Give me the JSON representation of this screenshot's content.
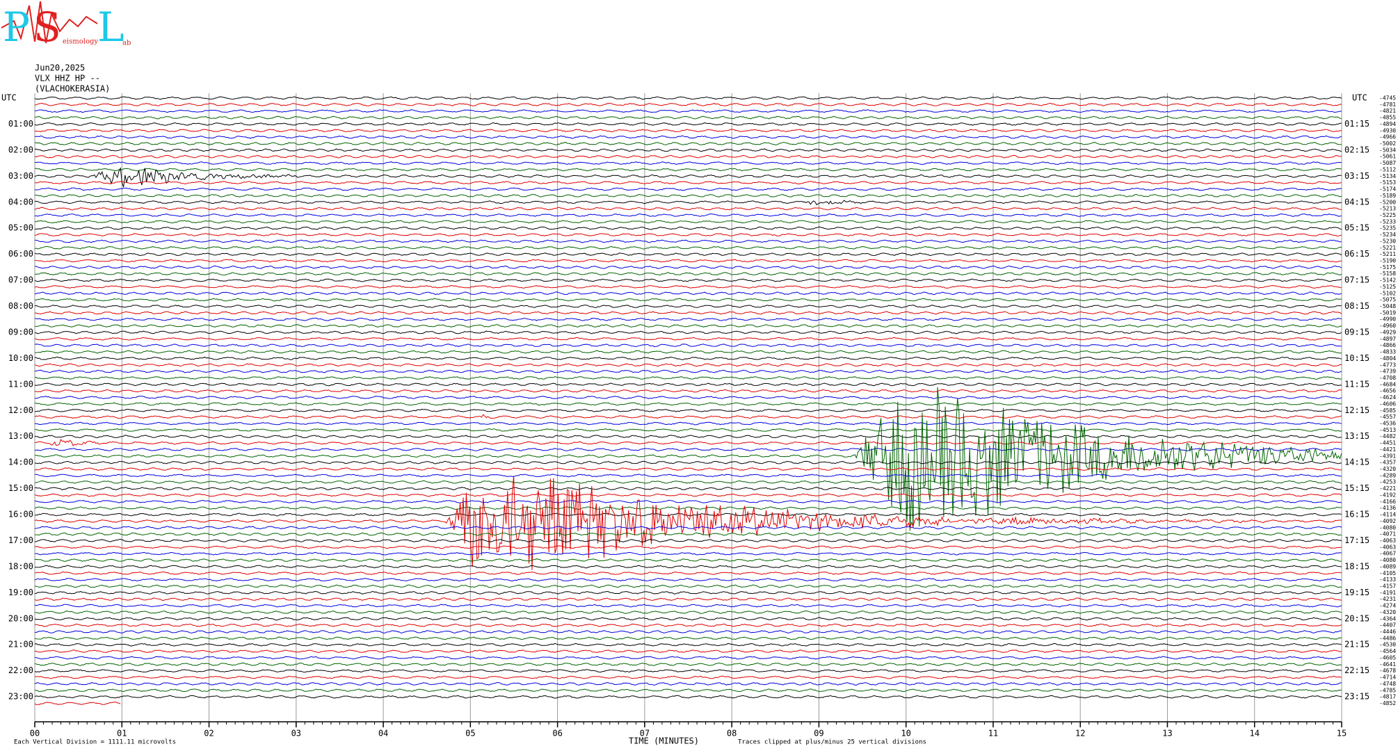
{
  "logo": {
    "letters": [
      "P",
      "S",
      "L"
    ],
    "words": [
      "eismology",
      "ab"
    ]
  },
  "header": {
    "date": "Jun20,2025",
    "station": "VLX HHZ HP --",
    "location": "(VLACHOKERASIA)"
  },
  "left_axis": {
    "title": "UTC",
    "labels": [
      "01:00",
      "02:00",
      "03:00",
      "04:00",
      "05:00",
      "06:00",
      "07:00",
      "08:00",
      "09:00",
      "10:00",
      "11:00",
      "12:00",
      "13:00",
      "14:00",
      "15:00",
      "16:00",
      "17:00",
      "18:00",
      "19:00",
      "20:00",
      "21:00",
      "22:00",
      "23:00"
    ]
  },
  "right_axis": {
    "title": "UTC",
    "labels": [
      "01:15",
      "02:15",
      "03:15",
      "04:15",
      "05:15",
      "06:15",
      "07:15",
      "08:15",
      "09:15",
      "10:15",
      "11:15",
      "12:15",
      "13:15",
      "14:15",
      "15:15",
      "16:15",
      "17:15",
      "18:15",
      "19:15",
      "20:15",
      "21:15",
      "22:15",
      "23:15"
    ]
  },
  "offsets": [
    -4745,
    -4781,
    -4821,
    -4855,
    -4894,
    -4930,
    -4966,
    -5002,
    -5034,
    -5061,
    -5087,
    -5112,
    -5134,
    -5153,
    -5174,
    -5189,
    -5200,
    -5213,
    -5225,
    -5233,
    -5235,
    -5234,
    -5230,
    -5221,
    -5211,
    -5190,
    -5175,
    -5158,
    -5142,
    -5125,
    -5102,
    -5075,
    -5048,
    -5019,
    -4990,
    -4960,
    -4929,
    -4897,
    -4866,
    -4833,
    -4804,
    -4773,
    -4739,
    -4708,
    -4684,
    -4656,
    -4624,
    -4606,
    -4585,
    -4557,
    -4536,
    -4513,
    -4482,
    -4451,
    -4421,
    -4391,
    -4357,
    -4320,
    -4289,
    -4253,
    -4221,
    -4192,
    -4166,
    -4136,
    -4114,
    -4092,
    -4080,
    -4071,
    -4063,
    -4063,
    -4067,
    -4080,
    -4089,
    -4105,
    -4133,
    -4157,
    -4191,
    -4231,
    -4274,
    -4320,
    -4364,
    -4407,
    -4446,
    -4486,
    -4530,
    -4564,
    -4605,
    -4641,
    -4678,
    -4714,
    -4748,
    -4785,
    -4817,
    -4852
  ],
  "x_axis": {
    "ticks": [
      "00",
      "01",
      "02",
      "03",
      "04",
      "05",
      "06",
      "07",
      "08",
      "09",
      "10",
      "11",
      "12",
      "13",
      "14",
      "15"
    ],
    "title": "TIME (MINUTES)"
  },
  "notes": {
    "scale": "Each Vertical Division = 1111.11 microvolts",
    "clip": "Traces clipped at plus/minus 25 vertical divisions"
  }
}
